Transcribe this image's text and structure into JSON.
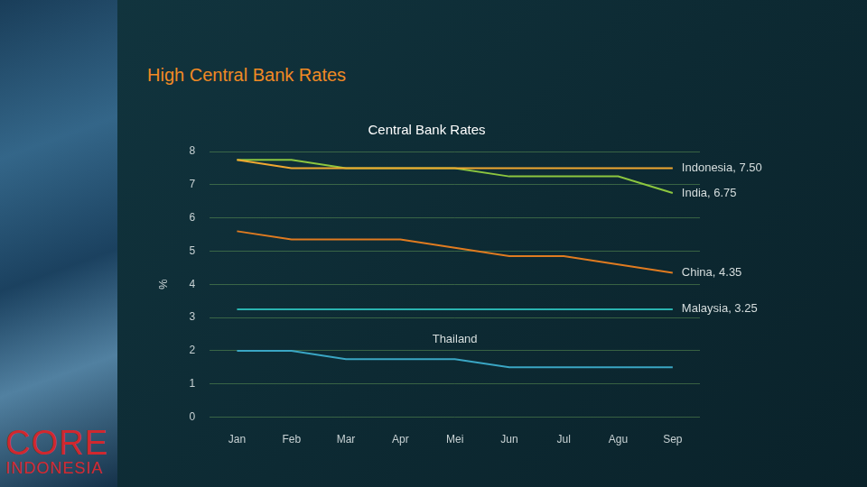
{
  "slide_title": "High Central Bank Rates",
  "logo": [
    "CORE",
    "INDONESIA"
  ],
  "chart_data": {
    "type": "line",
    "title": "Central Bank Rates",
    "y_label": "%",
    "categories": [
      "Jan",
      "Feb",
      "Mar",
      "Apr",
      "Mei",
      "Jun",
      "Jul",
      "Agu",
      "Sep"
    ],
    "series": [
      {
        "color": "#f0a830",
        "values": [
          7.75,
          7.5,
          7.5,
          7.5,
          7.5,
          7.5,
          7.5,
          7.5,
          7.5
        ]
      },
      {
        "color": "#8cc63f",
        "values": [
          7.75,
          7.75,
          7.5,
          7.5,
          7.5,
          7.25,
          7.25,
          7.25,
          6.75
        ]
      },
      {
        "color": "#e07b20",
        "values": [
          5.6,
          5.35,
          5.35,
          5.35,
          5.1,
          4.85,
          4.85,
          4.6,
          4.35
        ]
      },
      {
        "color": "#2ab3b0",
        "values": [
          3.25,
          3.25,
          3.25,
          3.25,
          3.25,
          3.25,
          3.25,
          3.25,
          3.25
        ]
      },
      {
        "color": "#3aa6c4",
        "values": [
          2.0,
          2.0,
          1.75,
          1.75,
          1.75,
          1.5,
          1.5,
          1.5,
          1.5
        ]
      }
    ],
    "annotations": [
      {
        "text": "Indonesia, 7.50",
        "x": "Sep",
        "y": 7.5
      },
      {
        "text": "India, 6.75",
        "x": "Sep",
        "y": 6.75
      },
      {
        "text": "China, 4.35",
        "x": "Sep",
        "y": 4.35
      },
      {
        "text": "Malaysia, 3.25",
        "x": "Sep",
        "y": 3.25
      },
      {
        "text": "Thailand",
        "x": "Mei",
        "y": 2.0
      }
    ],
    "ylim": [
      0,
      8
    ],
    "yticks": [
      0,
      1,
      2,
      3,
      4,
      5,
      6,
      7,
      8
    ],
    "grid": true
  }
}
